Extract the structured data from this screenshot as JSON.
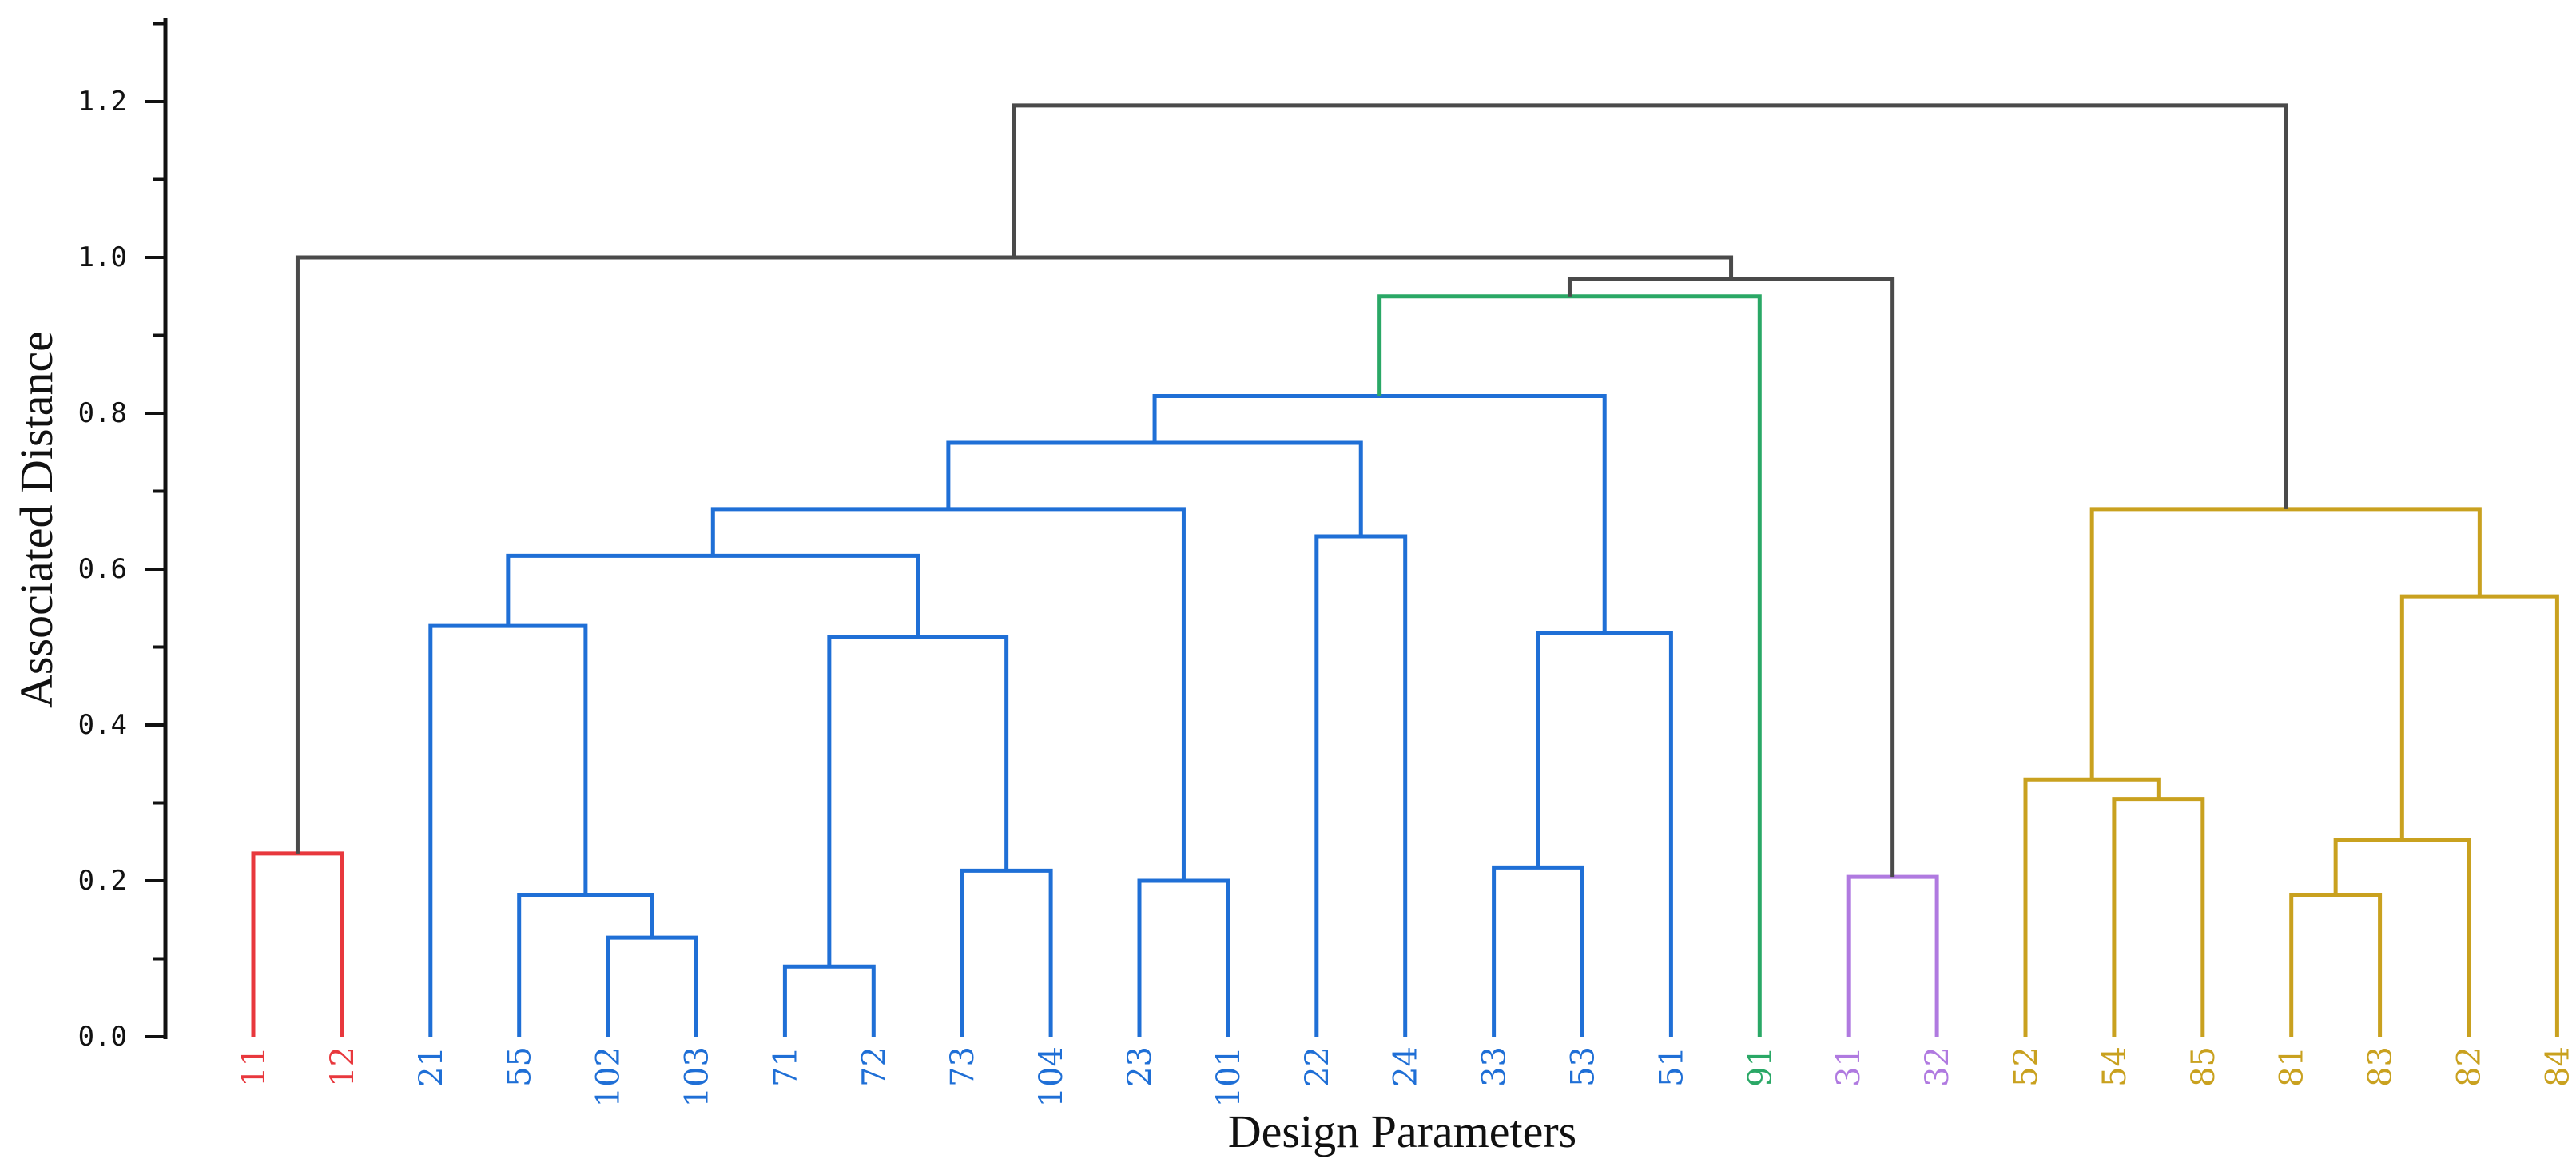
{
  "chart_data": {
    "type": "dendrogram",
    "xlabel": "Design Parameters",
    "ylabel": "Associated Distance",
    "ylim": [
      0,
      1.3
    ],
    "yticks": [
      0.0,
      0.2,
      0.4,
      0.6,
      0.8,
      1.0,
      1.2
    ],
    "ytick_labels": [
      "0.0",
      "0.2",
      "0.4",
      "0.6",
      "0.8",
      "1.0",
      "1.2"
    ],
    "colors": {
      "red": "#e8383d",
      "blue": "#1f6fd6",
      "green": "#2aa866",
      "purple": "#b07ae0",
      "gold": "#c9a11f",
      "link": "#4a4a4a",
      "axis": "#111111"
    },
    "leaves": [
      {
        "label": "11",
        "color": "red"
      },
      {
        "label": "12",
        "color": "red"
      },
      {
        "label": "21",
        "color": "blue"
      },
      {
        "label": "55",
        "color": "blue"
      },
      {
        "label": "102",
        "color": "blue"
      },
      {
        "label": "103",
        "color": "blue"
      },
      {
        "label": "71",
        "color": "blue"
      },
      {
        "label": "72",
        "color": "blue"
      },
      {
        "label": "73",
        "color": "blue"
      },
      {
        "label": "104",
        "color": "blue"
      },
      {
        "label": "23",
        "color": "blue"
      },
      {
        "label": "101",
        "color": "blue"
      },
      {
        "label": "22",
        "color": "blue"
      },
      {
        "label": "24",
        "color": "blue"
      },
      {
        "label": "33",
        "color": "blue"
      },
      {
        "label": "53",
        "color": "blue"
      },
      {
        "label": "51",
        "color": "blue"
      },
      {
        "label": "91",
        "color": "green"
      },
      {
        "label": "31",
        "color": "purple"
      },
      {
        "label": "32",
        "color": "purple"
      },
      {
        "label": "52",
        "color": "gold"
      },
      {
        "label": "54",
        "color": "gold"
      },
      {
        "label": "85",
        "color": "gold"
      },
      {
        "label": "81",
        "color": "gold"
      },
      {
        "label": "83",
        "color": "gold"
      },
      {
        "label": "82",
        "color": "gold"
      },
      {
        "label": "84",
        "color": "gold"
      }
    ],
    "merges": [
      {
        "id": "A",
        "left": "11",
        "right": "12",
        "height": 0.235,
        "color": "red"
      },
      {
        "id": "B",
        "left": "102",
        "right": "103",
        "height": 0.127,
        "color": "blue"
      },
      {
        "id": "C",
        "left": "55",
        "right": "B",
        "height": 0.182,
        "color": "blue"
      },
      {
        "id": "D",
        "left": "21",
        "right": "C",
        "height": 0.527,
        "color": "blue"
      },
      {
        "id": "E",
        "left": "71",
        "right": "72",
        "height": 0.09,
        "color": "blue"
      },
      {
        "id": "F",
        "left": "73",
        "right": "104",
        "height": 0.213,
        "color": "blue"
      },
      {
        "id": "G",
        "left": "E",
        "right": "F",
        "height": 0.513,
        "color": "blue"
      },
      {
        "id": "H",
        "left": "D",
        "right": "G",
        "height": 0.617,
        "color": "blue"
      },
      {
        "id": "I",
        "left": "23",
        "right": "101",
        "height": 0.2,
        "color": "blue"
      },
      {
        "id": "J",
        "left": "H",
        "right": "I",
        "height": 0.677,
        "color": "blue"
      },
      {
        "id": "K",
        "left": "22",
        "right": "24",
        "height": 0.642,
        "color": "blue"
      },
      {
        "id": "L",
        "left": "J",
        "right": "K",
        "height": 0.762,
        "color": "blue"
      },
      {
        "id": "M",
        "left": "33",
        "right": "53",
        "height": 0.217,
        "color": "blue"
      },
      {
        "id": "N",
        "left": "M",
        "right": "51",
        "height": 0.518,
        "color": "blue"
      },
      {
        "id": "O",
        "left": "L",
        "right": "N",
        "height": 0.822,
        "color": "blue"
      },
      {
        "id": "P",
        "left": "O",
        "right": "91",
        "height": 0.95,
        "color": "green"
      },
      {
        "id": "Q",
        "left": "31",
        "right": "32",
        "height": 0.205,
        "color": "purple"
      },
      {
        "id": "R",
        "left": "P",
        "right": "Q",
        "height": 0.972,
        "color": "link"
      },
      {
        "id": "S",
        "left": "A",
        "right": "R",
        "height": 1.0,
        "color": "link"
      },
      {
        "id": "T",
        "left": "54",
        "right": "85",
        "height": 0.305,
        "color": "gold"
      },
      {
        "id": "U",
        "left": "52",
        "right": "T",
        "height": 0.33,
        "color": "gold"
      },
      {
        "id": "V",
        "left": "81",
        "right": "83",
        "height": 0.182,
        "color": "gold"
      },
      {
        "id": "W",
        "left": "V",
        "right": "82",
        "height": 0.252,
        "color": "gold"
      },
      {
        "id": "X",
        "left": "W",
        "right": "84",
        "height": 0.565,
        "color": "gold"
      },
      {
        "id": "Y",
        "left": "U",
        "right": "X",
        "height": 0.677,
        "color": "gold"
      },
      {
        "id": "Z",
        "left": "S",
        "right": "Y",
        "height": 1.195,
        "color": "link"
      }
    ]
  }
}
